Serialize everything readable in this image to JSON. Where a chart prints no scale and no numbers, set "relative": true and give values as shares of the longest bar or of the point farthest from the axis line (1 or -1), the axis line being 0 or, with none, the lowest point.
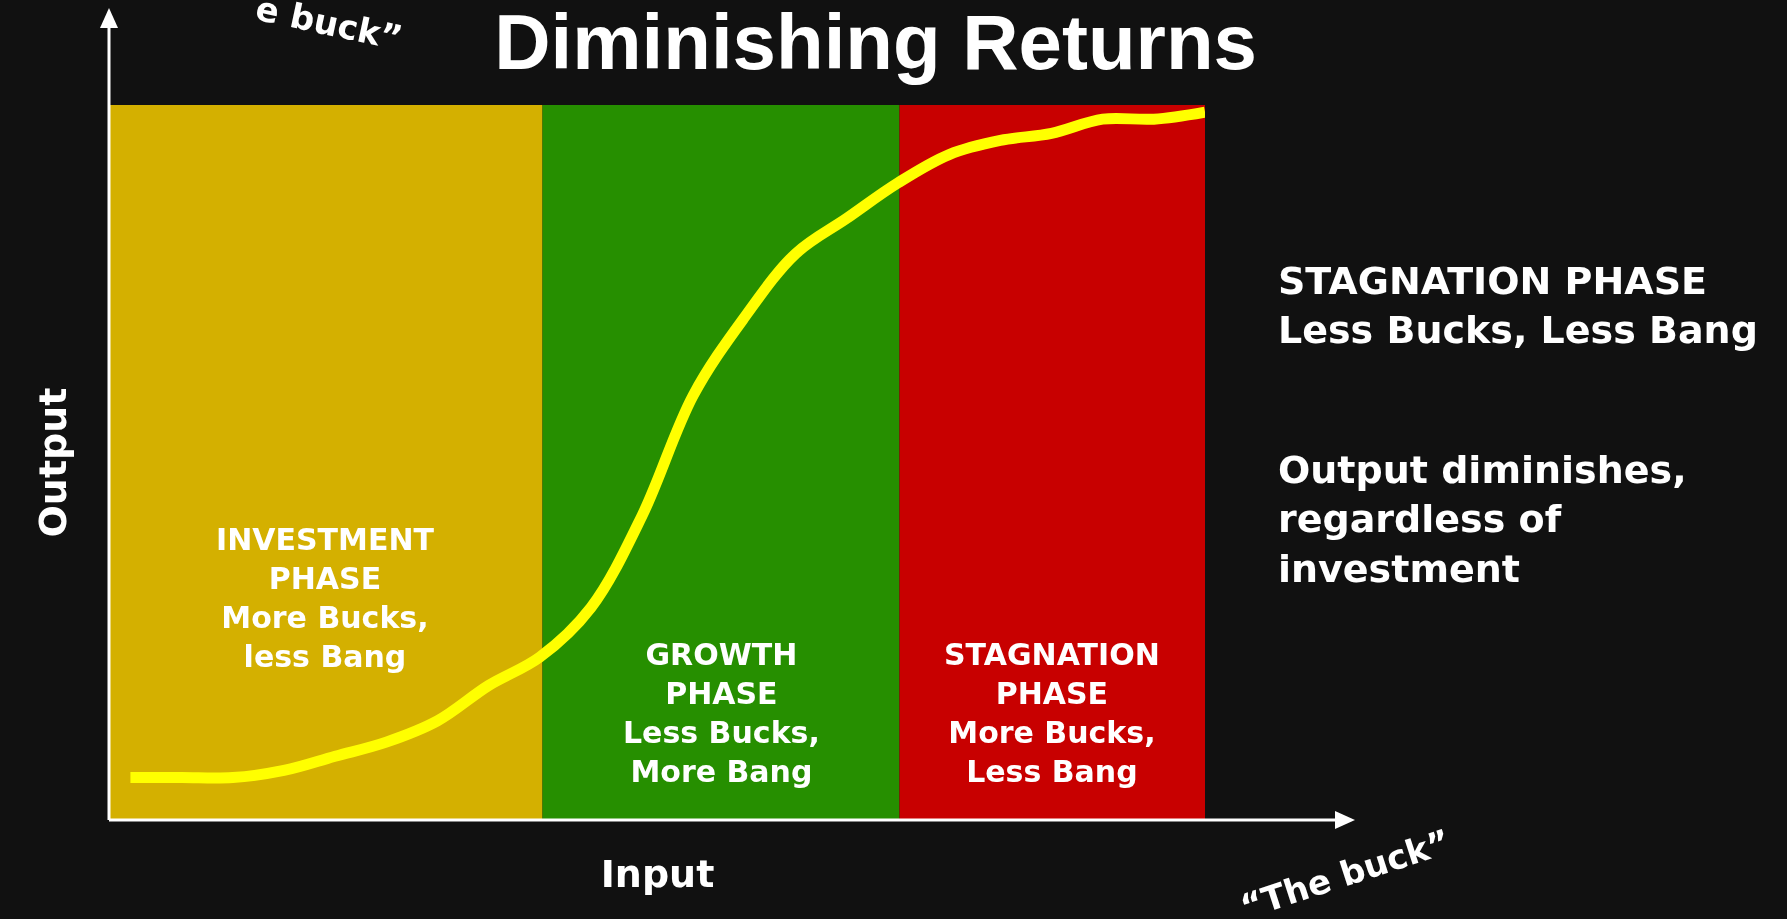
{
  "chart_data": {
    "type": "line",
    "title": "Diminishing Returns",
    "xlabel": "Input",
    "ylabel": "Output",
    "relative": true,
    "categories": [
      null,
      null,
      null,
      null,
      null,
      null,
      null,
      null,
      null,
      null,
      null,
      null,
      null,
      null,
      null,
      null,
      null,
      null,
      null,
      null,
      null,
      null
    ],
    "series": [
      {
        "color": "#ffff00",
        "values": [
          0.06,
          0.06,
          0.06,
          0.07,
          0.09,
          0.11,
          0.14,
          0.19,
          0.23,
          0.3,
          0.43,
          0.6,
          0.71,
          0.8,
          0.85,
          0.9,
          0.94,
          0.96,
          0.97,
          0.99,
          0.99,
          1
        ]
      }
    ],
    "annotations": [
      "INVESTMENT\nPHASE\nMore Bucks,\nless Bang",
      "GROWTH\nPHASE\nLess Bucks,\nMore Bang",
      "STAGNATION\nPHASE\nMore Bucks,\nLess Bang",
      "e buck”",
      "“The buck”",
      "STAGNATION PHASE\nLess Bucks, Less Bang",
      "Output diminishes,\nregardless of\ninvestment"
    ]
  }
}
